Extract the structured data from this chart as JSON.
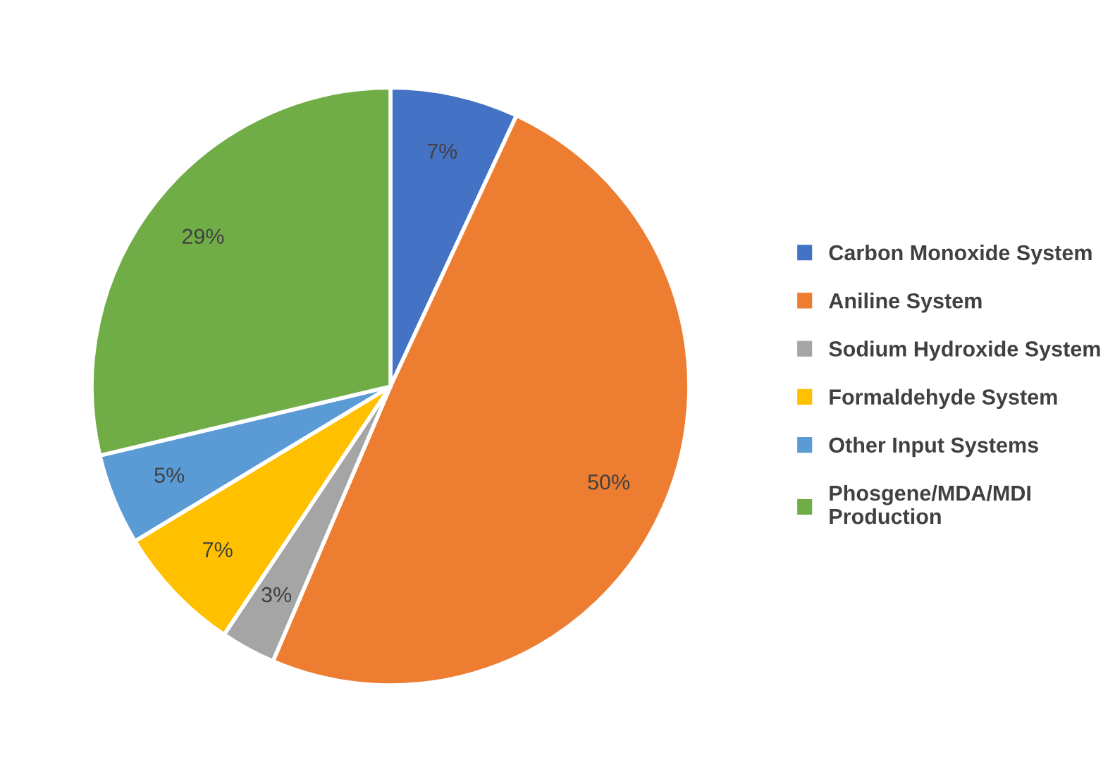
{
  "chart_data": {
    "type": "pie",
    "categories": [
      "Carbon Monoxide System",
      "Aniline System",
      "Sodium Hydroxide System",
      "Formaldehyde System",
      "Other Input Systems",
      "Phosgene/MDA/MDI\nProduction"
    ],
    "values": [
      7,
      50,
      3,
      7,
      5,
      29
    ],
    "value_labels": [
      "7%",
      "50%",
      "3%",
      "7%",
      "5%",
      "29%"
    ],
    "colors": [
      "#4472c4",
      "#ed7d31",
      "#a5a5a5",
      "#ffc000",
      "#5b9bd5",
      "#70ad47"
    ],
    "legend": "right"
  }
}
